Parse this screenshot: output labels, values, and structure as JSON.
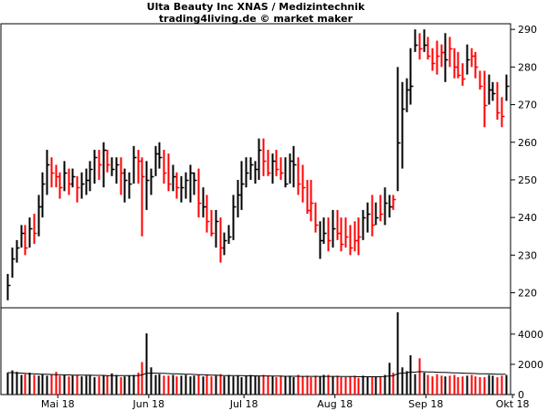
{
  "header": {
    "title": "Ulta Beauty Inc XNAS / Medizintechnik",
    "subtitle": "trading4living.de © market maker"
  },
  "colors": {
    "up": "#000000",
    "down": "#ff0000",
    "volume_avg_line": "#000000",
    "frame": "#000000"
  },
  "chart_data": [
    {
      "type": "ohlc-bar",
      "panel": "price",
      "y_ticks": [
        220,
        230,
        240,
        250,
        260,
        270,
        280,
        290
      ],
      "ylim": [
        216,
        291.5
      ],
      "grid": false,
      "x_labels": [
        "Mai 18",
        "Jun 18",
        "Jul 18",
        "Aug 18",
        "Sep 18",
        "Okt 18"
      ],
      "bars": [
        [
          218,
          225,
          222,
          "up"
        ],
        [
          224,
          232,
          229,
          "up"
        ],
        [
          228,
          234,
          232,
          "up"
        ],
        [
          232,
          238,
          236,
          "up"
        ],
        [
          230,
          238,
          232,
          "down"
        ],
        [
          232,
          240,
          237,
          "up"
        ],
        [
          233,
          241,
          236,
          "down"
        ],
        [
          235,
          246,
          243,
          "up"
        ],
        [
          240,
          252,
          249,
          "up"
        ],
        [
          246,
          258,
          254,
          "up"
        ],
        [
          248,
          256,
          252,
          "down"
        ],
        [
          248,
          254,
          251,
          "down"
        ],
        [
          245,
          252,
          248,
          "down"
        ],
        [
          247,
          255,
          252,
          "up"
        ],
        [
          246,
          253,
          249,
          "down"
        ],
        [
          248,
          253,
          251,
          "up"
        ],
        [
          244,
          251,
          248,
          "down"
        ],
        [
          245,
          252,
          249,
          "up"
        ],
        [
          246,
          253,
          250,
          "up"
        ],
        [
          247,
          255,
          253,
          "up"
        ],
        [
          249,
          258,
          256,
          "up"
        ],
        [
          250,
          258,
          254,
          "down"
        ],
        [
          248,
          260,
          258,
          "up"
        ],
        [
          252,
          258,
          254,
          "down"
        ],
        [
          251,
          256,
          253,
          "up"
        ],
        [
          249,
          256,
          254,
          "up"
        ],
        [
          246,
          256,
          252,
          "down"
        ],
        [
          244,
          253,
          250,
          "up"
        ],
        [
          245,
          252,
          249,
          "up"
        ],
        [
          249,
          259,
          256,
          "up"
        ],
        [
          249,
          258,
          255,
          "down"
        ],
        [
          235,
          256,
          251,
          "down"
        ],
        [
          242,
          255,
          250,
          "up"
        ],
        [
          246,
          253,
          251,
          "up"
        ],
        [
          251,
          259,
          257,
          "up"
        ],
        [
          253,
          260,
          256,
          "up"
        ],
        [
          249,
          258,
          252,
          "down"
        ],
        [
          247,
          257,
          249,
          "down"
        ],
        [
          247,
          254,
          251,
          "up"
        ],
        [
          245,
          252,
          248,
          "down"
        ],
        [
          244,
          251,
          248,
          "up"
        ],
        [
          245,
          252,
          250,
          "up"
        ],
        [
          244,
          254,
          252,
          "up"
        ],
        [
          246,
          252,
          250,
          "up"
        ],
        [
          240,
          253,
          244,
          "down"
        ],
        [
          240,
          248,
          243,
          "up"
        ],
        [
          236,
          246,
          239,
          "down"
        ],
        [
          235,
          242,
          236,
          "down"
        ],
        [
          232,
          242,
          239,
          "up"
        ],
        [
          228,
          240,
          232,
          "down"
        ],
        [
          230,
          236,
          234,
          "up"
        ],
        [
          233,
          238,
          235,
          "up"
        ],
        [
          234,
          246,
          243,
          "up"
        ],
        [
          240,
          250,
          246,
          "up"
        ],
        [
          242,
          255,
          249,
          "up"
        ],
        [
          248,
          256,
          252,
          "up"
        ],
        [
          250,
          256,
          254,
          "up"
        ],
        [
          249,
          255,
          253,
          "up"
        ],
        [
          250,
          261,
          258,
          "up"
        ],
        [
          251,
          261,
          255,
          "down"
        ],
        [
          251,
          258,
          252,
          "down"
        ],
        [
          249,
          257,
          255,
          "up"
        ],
        [
          251,
          258,
          253,
          "down"
        ],
        [
          250,
          256,
          252,
          "down"
        ],
        [
          248,
          256,
          249,
          "up"
        ],
        [
          249,
          257,
          255,
          "up"
        ],
        [
          248,
          259,
          254,
          "up"
        ],
        [
          246,
          256,
          249,
          "down"
        ],
        [
          244,
          254,
          248,
          "down"
        ],
        [
          241,
          250,
          242,
          "down"
        ],
        [
          239,
          250,
          244,
          "down"
        ],
        [
          236,
          244,
          238,
          "down"
        ],
        [
          229,
          239,
          234,
          "up"
        ],
        [
          233,
          240,
          236,
          "up"
        ],
        [
          231,
          240,
          234,
          "down"
        ],
        [
          232,
          242,
          237,
          "up"
        ],
        [
          234,
          242,
          236,
          "down"
        ],
        [
          231,
          240,
          233,
          "down"
        ],
        [
          232,
          240,
          235,
          "down"
        ],
        [
          230,
          238,
          232,
          "down"
        ],
        [
          231,
          239,
          234,
          "down"
        ],
        [
          230,
          240,
          235,
          "down"
        ],
        [
          234,
          242,
          240,
          "up"
        ],
        [
          236,
          244,
          241,
          "up"
        ],
        [
          235,
          246,
          238,
          "down"
        ],
        [
          238,
          244,
          240,
          "up"
        ],
        [
          239,
          246,
          241,
          "down"
        ],
        [
          238,
          248,
          244,
          "up"
        ],
        [
          240,
          246,
          243,
          "up"
        ],
        [
          242,
          246,
          245,
          "down"
        ],
        [
          247,
          280,
          260,
          "up"
        ],
        [
          253,
          276,
          269,
          "up"
        ],
        [
          268,
          277,
          274,
          "up"
        ],
        [
          270,
          285,
          275,
          "up"
        ],
        [
          284,
          290,
          286,
          "up"
        ],
        [
          282,
          289,
          285,
          "down"
        ],
        [
          284,
          290,
          286,
          "up"
        ],
        [
          282,
          288,
          283,
          "down"
        ],
        [
          279,
          285,
          281,
          "down"
        ],
        [
          278,
          287,
          283,
          "down"
        ],
        [
          280,
          286,
          284,
          "down"
        ],
        [
          276,
          289,
          282,
          "up"
        ],
        [
          280,
          288,
          285,
          "down"
        ],
        [
          277,
          285,
          280,
          "down"
        ],
        [
          277,
          284,
          278,
          "down"
        ],
        [
          275,
          281,
          277,
          "down"
        ],
        [
          278,
          286,
          282,
          "up"
        ],
        [
          280,
          285,
          283,
          "down"
        ],
        [
          277,
          284,
          280,
          "down"
        ],
        [
          274,
          279,
          275,
          "down"
        ],
        [
          264,
          279,
          270,
          "down"
        ],
        [
          270,
          278,
          274,
          "up"
        ],
        [
          271,
          276,
          273,
          "up"
        ],
        [
          266,
          276,
          268,
          "down"
        ],
        [
          264,
          272,
          267,
          "down"
        ],
        [
          271,
          278,
          275,
          "up"
        ]
      ]
    },
    {
      "type": "bar",
      "panel": "volume",
      "y_ticks": [
        0,
        2000,
        4000
      ],
      "ylim": [
        0,
        5500
      ],
      "values": [
        1450,
        1600,
        1500,
        1300,
        1350,
        1450,
        1300,
        1250,
        1350,
        1250,
        1300,
        1500,
        1250,
        1300,
        1200,
        1250,
        1300,
        1200,
        1250,
        1300,
        1150,
        1200,
        1300,
        1250,
        1400,
        1300,
        1150,
        1200,
        1250,
        1300,
        1450,
        2150,
        4050,
        1800,
        1300,
        1350,
        1250,
        1250,
        1300,
        1200,
        1250,
        1300,
        1200,
        1250,
        1300,
        1200,
        1300,
        1200,
        1250,
        1350,
        1200,
        1300,
        1200,
        1250,
        1150,
        1250,
        1300,
        1250,
        1200,
        1300,
        1250,
        1200,
        1150,
        1250,
        1200,
        1250,
        1150,
        1300,
        1200,
        1250,
        1150,
        1250,
        1200,
        1300,
        1300,
        1200,
        1250,
        1150,
        1150,
        1200,
        1250,
        1100,
        1250,
        1200,
        1200,
        1150,
        1200,
        1300,
        2100,
        1450,
        5450,
        1800,
        1550,
        2600,
        1350,
        2400,
        1450,
        1300,
        1200,
        1350,
        1250,
        1200,
        1250,
        1300,
        1150,
        1200,
        1250,
        1300,
        1200,
        1150,
        1150,
        1300,
        1250,
        1150,
        1250,
        1300
      ],
      "avg_line": [
        1450,
        1450,
        1440,
        1420,
        1400,
        1380,
        1370,
        1360,
        1350,
        1340,
        1330,
        1320,
        1310,
        1300,
        1300,
        1290,
        1280,
        1280,
        1280,
        1280,
        1270,
        1270,
        1270,
        1260,
        1260,
        1260,
        1260,
        1250,
        1250,
        1250,
        1260,
        1300,
        1400,
        1420,
        1420,
        1410,
        1400,
        1390,
        1380,
        1370,
        1360,
        1350,
        1340,
        1330,
        1320,
        1310,
        1300,
        1290,
        1280,
        1270,
        1260,
        1260,
        1250,
        1250,
        1250,
        1240,
        1240,
        1240,
        1230,
        1230,
        1230,
        1220,
        1220,
        1220,
        1210,
        1210,
        1210,
        1210,
        1200,
        1200,
        1200,
        1200,
        1200,
        1200,
        1200,
        1200,
        1200,
        1190,
        1190,
        1190,
        1190,
        1180,
        1180,
        1180,
        1180,
        1180,
        1180,
        1190,
        1220,
        1240,
        1380,
        1420,
        1440,
        1490,
        1480,
        1520,
        1510,
        1500,
        1490,
        1480,
        1470,
        1460,
        1450,
        1440,
        1430,
        1420,
        1410,
        1400,
        1390,
        1380,
        1370,
        1370,
        1360,
        1350,
        1350,
        1350
      ]
    }
  ]
}
